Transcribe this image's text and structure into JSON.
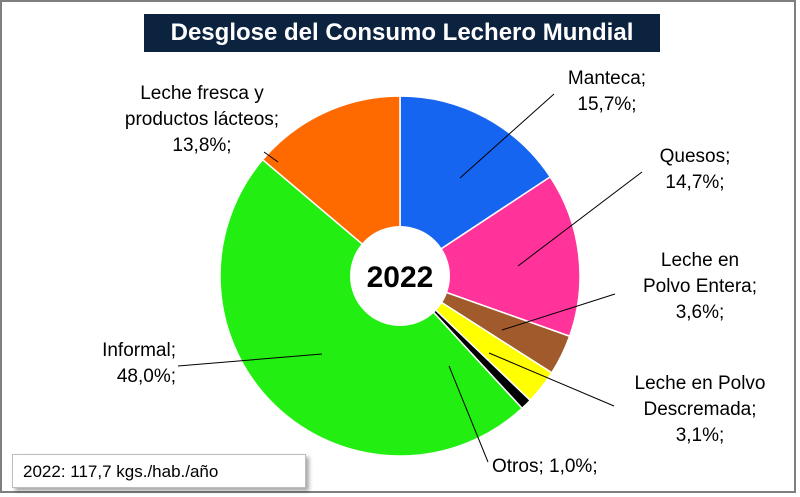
{
  "title": "Desglose del Consumo Lechero Mundial",
  "note": "2022: 117,7 kgs./hab./año",
  "chart_data": {
    "type": "pie",
    "title": "Desglose del Consumo Lechero Mundial",
    "center_label": "2022",
    "slices": [
      {
        "name": "Manteca",
        "value": 15.7,
        "color": "#1565f0",
        "label_lines": [
          "Manteca;",
          "15,7%;"
        ]
      },
      {
        "name": "Quesos",
        "value": 14.7,
        "color": "#ff3399",
        "label_lines": [
          "Quesos;",
          "14,7%;"
        ]
      },
      {
        "name": "Leche en Polvo Entera",
        "value": 3.6,
        "color": "#a05a2c",
        "label_lines": [
          "Leche en",
          "Polvo Entera;",
          "3,6%;"
        ]
      },
      {
        "name": "Leche en Polvo Descremada",
        "value": 3.1,
        "color": "#ffff00",
        "label_lines": [
          "Leche en Polvo",
          "Descremada;",
          "3,1%;"
        ]
      },
      {
        "name": "Otros",
        "value": 1.0,
        "color": "#000000",
        "label_lines": [
          "Otros; 1,0%;"
        ]
      },
      {
        "name": "Informal",
        "value": 48.0,
        "color": "#22ee11",
        "label_lines": [
          "Informal;",
          "48,0%;"
        ]
      },
      {
        "name": "Leche fresca y productos lácteos",
        "value": 13.8,
        "color": "#ff6a00",
        "label_lines": [
          "Leche fresca y",
          "productos lácteos;",
          "13,8%;"
        ]
      }
    ]
  }
}
